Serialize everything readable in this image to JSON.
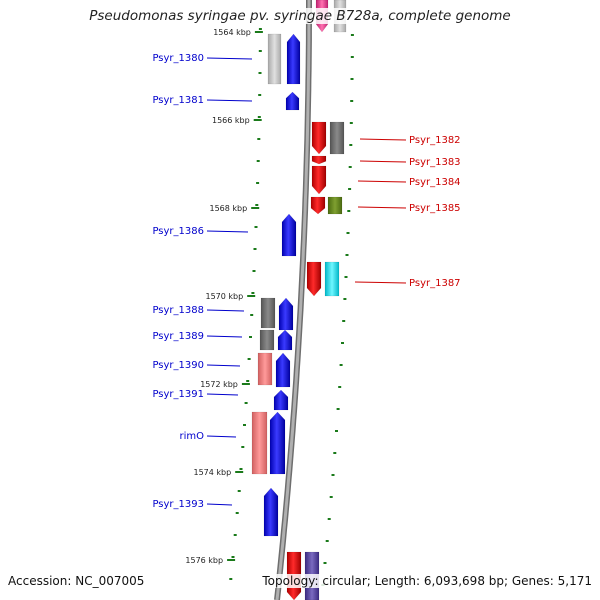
{
  "title": "Pseudomonas syringae pv. syringae B728a, complete genome",
  "footer": {
    "accession": "Accession: NC_007005",
    "stats": "Topology: circular; Length: 6,093,698 bp; Genes: 5,171"
  },
  "scale_labels": [
    "1564 kbp",
    "1566 kbp",
    "1568 kbp",
    "1570 kbp",
    "1572 kbp",
    "1574 kbp",
    "1576 kbp"
  ],
  "genes_left": [
    "Psyr_1380",
    "Psyr_1381",
    "Psyr_1386",
    "Psyr_1388",
    "Psyr_1389",
    "Psyr_1390",
    "Psyr_1391",
    "rimO",
    "Psyr_1393"
  ],
  "genes_right": [
    "Psyr_1382",
    "Psyr_1383",
    "Psyr_1384",
    "Psyr_1385",
    "Psyr_1387"
  ],
  "colors": {
    "forward_label": "#0000cc",
    "reverse_label": "#cc0000",
    "tick": "#1a7a1a",
    "backbone": "#999999"
  }
}
